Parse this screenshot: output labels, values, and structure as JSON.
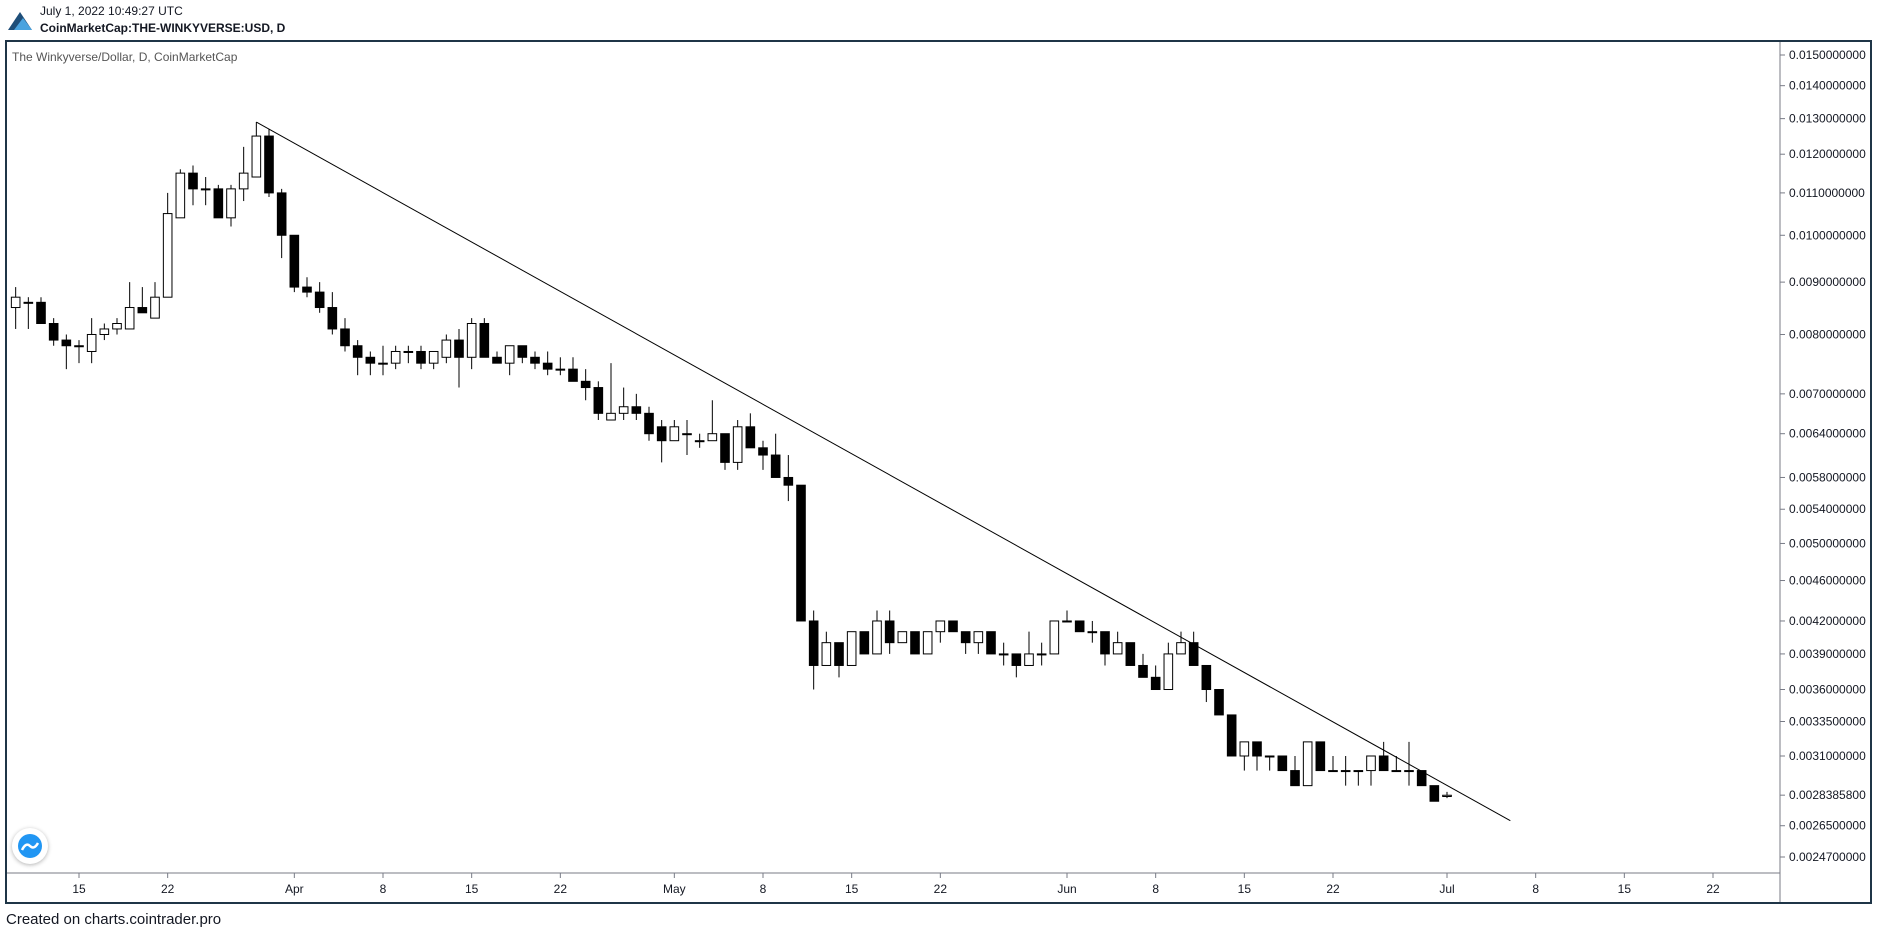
{
  "header": {
    "timestamp": "July 1, 2022 10:49:27 UTC",
    "symbol": "CoinMarketCap:THE-WINKYVERSE:USD, D"
  },
  "legend": {
    "title": "The Winkyverse/Dollar, D, CoinMarketCap"
  },
  "footer": {
    "text": "Created on charts.cointrader.pro"
  },
  "icons": {
    "logo": "cointrader-logo-icon",
    "badge": "tradingview-badge-icon"
  },
  "colors": {
    "up_fill": "#ffffff",
    "down_fill": "#000000",
    "wick": "#000000",
    "border": "#1f3547",
    "text": "#131722"
  },
  "chart_data": {
    "type": "candlestick",
    "title": "The Winkyverse/Dollar, D, CoinMarketCap",
    "scale": "log",
    "ylim": [
      0.00238,
      0.0153
    ],
    "y_ticks": [
      "0.0150000000",
      "0.0140000000",
      "0.0130000000",
      "0.0120000000",
      "0.0110000000",
      "0.0100000000",
      "0.0090000000",
      "0.0080000000",
      "0.0070000000",
      "0.0064000000",
      "0.0058000000",
      "0.0054000000",
      "0.0050000000",
      "0.0046000000",
      "0.0042000000",
      "0.0039000000",
      "0.0036000000",
      "0.0033500000",
      "0.0031000000",
      "0.0028385800",
      "0.0026500000",
      "0.0024700000"
    ],
    "last_price_label": "0.0028385800",
    "x_ticks": [
      "15",
      "22",
      "Apr",
      "8",
      "15",
      "22",
      "May",
      "8",
      "15",
      "22",
      "Jun",
      "8",
      "15",
      "22",
      "Jul",
      "8",
      "15",
      "22"
    ],
    "x_tick_dates": [
      "2022-03-15",
      "2022-03-22",
      "2022-04-01",
      "2022-04-08",
      "2022-04-15",
      "2022-04-22",
      "2022-05-01",
      "2022-05-08",
      "2022-05-15",
      "2022-05-22",
      "2022-06-01",
      "2022-06-08",
      "2022-06-15",
      "2022-06-22",
      "2022-07-01",
      "2022-07-08",
      "2022-07-15",
      "2022-07-22"
    ],
    "grid": false,
    "trendline": {
      "start": [
        "2022-03-29",
        0.0129
      ],
      "end": [
        "2022-07-06",
        0.00268
      ]
    },
    "candles": [
      [
        "2022-03-10",
        0.0085,
        0.0089,
        0.0081,
        0.0087
      ],
      [
        "2022-03-11",
        0.0086,
        0.0087,
        0.0081,
        0.0086
      ],
      [
        "2022-03-12",
        0.0086,
        0.0087,
        0.0082,
        0.0082
      ],
      [
        "2022-03-13",
        0.0082,
        0.0083,
        0.0078,
        0.0079
      ],
      [
        "2022-03-14",
        0.0079,
        0.008,
        0.0074,
        0.0078
      ],
      [
        "2022-03-15",
        0.0078,
        0.0079,
        0.0075,
        0.0078
      ],
      [
        "2022-03-16",
        0.0077,
        0.0083,
        0.0075,
        0.008
      ],
      [
        "2022-03-17",
        0.008,
        0.0082,
        0.0079,
        0.0081
      ],
      [
        "2022-03-18",
        0.0081,
        0.0083,
        0.008,
        0.0082
      ],
      [
        "2022-03-19",
        0.0081,
        0.009,
        0.0081,
        0.0085
      ],
      [
        "2022-03-20",
        0.0085,
        0.0089,
        0.0084,
        0.0084
      ],
      [
        "2022-03-21",
        0.0083,
        0.009,
        0.0083,
        0.0087
      ],
      [
        "2022-03-22",
        0.0087,
        0.011,
        0.0087,
        0.0105
      ],
      [
        "2022-03-23",
        0.0104,
        0.0116,
        0.0104,
        0.0115
      ],
      [
        "2022-03-24",
        0.0115,
        0.0117,
        0.0107,
        0.0111
      ],
      [
        "2022-03-25",
        0.0111,
        0.0114,
        0.0107,
        0.0111
      ],
      [
        "2022-03-26",
        0.0111,
        0.0112,
        0.0104,
        0.0104
      ],
      [
        "2022-03-27",
        0.0104,
        0.0112,
        0.0102,
        0.0111
      ],
      [
        "2022-03-28",
        0.0111,
        0.0122,
        0.0108,
        0.0115
      ],
      [
        "2022-03-29",
        0.0114,
        0.0129,
        0.0114,
        0.0125
      ],
      [
        "2022-03-30",
        0.0125,
        0.0127,
        0.0109,
        0.011
      ],
      [
        "2022-03-31",
        0.011,
        0.0111,
        0.0095,
        0.01
      ],
      [
        "2022-04-01",
        0.01,
        0.01,
        0.0088,
        0.0089
      ],
      [
        "2022-04-02",
        0.0089,
        0.0091,
        0.0087,
        0.0088
      ],
      [
        "2022-04-03",
        0.0088,
        0.009,
        0.0084,
        0.0085
      ],
      [
        "2022-04-04",
        0.0085,
        0.0088,
        0.008,
        0.0081
      ],
      [
        "2022-04-05",
        0.0081,
        0.0083,
        0.0077,
        0.0078
      ],
      [
        "2022-04-06",
        0.0078,
        0.0079,
        0.0073,
        0.0076
      ],
      [
        "2022-04-07",
        0.0076,
        0.0077,
        0.0073,
        0.0075
      ],
      [
        "2022-04-08",
        0.0075,
        0.0078,
        0.0073,
        0.0075
      ],
      [
        "2022-04-09",
        0.0075,
        0.0078,
        0.0074,
        0.0077
      ],
      [
        "2022-04-10",
        0.0077,
        0.0078,
        0.0075,
        0.0077
      ],
      [
        "2022-04-11",
        0.0077,
        0.0078,
        0.0074,
        0.0075
      ],
      [
        "2022-04-12",
        0.0075,
        0.0077,
        0.0074,
        0.0077
      ],
      [
        "2022-04-13",
        0.0076,
        0.008,
        0.0075,
        0.0079
      ],
      [
        "2022-04-14",
        0.0079,
        0.0081,
        0.0071,
        0.0076
      ],
      [
        "2022-04-15",
        0.0076,
        0.0083,
        0.0074,
        0.0082
      ],
      [
        "2022-04-16",
        0.0082,
        0.0083,
        0.0076,
        0.0076
      ],
      [
        "2022-04-17",
        0.0076,
        0.0077,
        0.0075,
        0.0075
      ],
      [
        "2022-04-18",
        0.0075,
        0.0078,
        0.0073,
        0.0078
      ],
      [
        "2022-04-19",
        0.0078,
        0.0078,
        0.0075,
        0.0076
      ],
      [
        "2022-04-20",
        0.0076,
        0.0077,
        0.0074,
        0.0075
      ],
      [
        "2022-04-21",
        0.0075,
        0.0077,
        0.0073,
        0.0074
      ],
      [
        "2022-04-22",
        0.0074,
        0.0076,
        0.0073,
        0.0074
      ],
      [
        "2022-04-23",
        0.0074,
        0.0076,
        0.0072,
        0.0072
      ],
      [
        "2022-04-24",
        0.0072,
        0.0074,
        0.0069,
        0.0071
      ],
      [
        "2022-04-25",
        0.0071,
        0.0072,
        0.0066,
        0.0067
      ],
      [
        "2022-04-26",
        0.0066,
        0.0075,
        0.0066,
        0.0067
      ],
      [
        "2022-04-27",
        0.0067,
        0.0071,
        0.0066,
        0.0068
      ],
      [
        "2022-04-28",
        0.0068,
        0.007,
        0.0066,
        0.0067
      ],
      [
        "2022-04-29",
        0.0067,
        0.0068,
        0.0063,
        0.0064
      ],
      [
        "2022-04-30",
        0.0065,
        0.0066,
        0.006,
        0.0063
      ],
      [
        "2022-05-01",
        0.0063,
        0.0066,
        0.0063,
        0.0065
      ],
      [
        "2022-05-02",
        0.0064,
        0.0066,
        0.0061,
        0.0064
      ],
      [
        "2022-05-03",
        0.0063,
        0.0064,
        0.0062,
        0.0063
      ],
      [
        "2022-05-04",
        0.0063,
        0.0069,
        0.0063,
        0.0064
      ],
      [
        "2022-05-05",
        0.0064,
        0.0064,
        0.0059,
        0.006
      ],
      [
        "2022-05-06",
        0.006,
        0.0066,
        0.0059,
        0.0065
      ],
      [
        "2022-05-07",
        0.0065,
        0.0067,
        0.0062,
        0.0062
      ],
      [
        "2022-05-08",
        0.0062,
        0.0063,
        0.0059,
        0.0061
      ],
      [
        "2022-05-09",
        0.0061,
        0.0064,
        0.0058,
        0.0058
      ],
      [
        "2022-05-10",
        0.0058,
        0.0061,
        0.0055,
        0.0057
      ],
      [
        "2022-05-11",
        0.0057,
        0.0057,
        0.0042,
        0.0042
      ],
      [
        "2022-05-12",
        0.0042,
        0.0043,
        0.0036,
        0.0038
      ],
      [
        "2022-05-13",
        0.0038,
        0.0041,
        0.0038,
        0.004
      ],
      [
        "2022-05-14",
        0.004,
        0.004,
        0.0037,
        0.0038
      ],
      [
        "2022-05-15",
        0.0038,
        0.0041,
        0.0038,
        0.0041
      ],
      [
        "2022-05-16",
        0.0041,
        0.0041,
        0.0039,
        0.0039
      ],
      [
        "2022-05-17",
        0.0039,
        0.0043,
        0.0039,
        0.0042
      ],
      [
        "2022-05-18",
        0.0042,
        0.0043,
        0.0039,
        0.004
      ],
      [
        "2022-05-19",
        0.004,
        0.0041,
        0.004,
        0.0041
      ],
      [
        "2022-05-20",
        0.0041,
        0.0041,
        0.0039,
        0.0039
      ],
      [
        "2022-05-21",
        0.0039,
        0.0041,
        0.0039,
        0.0041
      ],
      [
        "2022-05-22",
        0.0041,
        0.0042,
        0.004,
        0.0042
      ],
      [
        "2022-05-23",
        0.0042,
        0.0042,
        0.0041,
        0.0041
      ],
      [
        "2022-05-24",
        0.0041,
        0.0041,
        0.0039,
        0.004
      ],
      [
        "2022-05-25",
        0.004,
        0.0041,
        0.0039,
        0.0041
      ],
      [
        "2022-05-26",
        0.0041,
        0.0041,
        0.0039,
        0.0039
      ],
      [
        "2022-05-27",
        0.0039,
        0.004,
        0.0038,
        0.0039
      ],
      [
        "2022-05-28",
        0.0039,
        0.0039,
        0.0037,
        0.0038
      ],
      [
        "2022-05-29",
        0.0038,
        0.0041,
        0.0038,
        0.0039
      ],
      [
        "2022-05-30",
        0.0039,
        0.004,
        0.0038,
        0.0039
      ],
      [
        "2022-05-31",
        0.0039,
        0.0042,
        0.0039,
        0.0042
      ],
      [
        "2022-06-01",
        0.0042,
        0.0043,
        0.0042,
        0.0042
      ],
      [
        "2022-06-02",
        0.0042,
        0.0042,
        0.0041,
        0.0041
      ],
      [
        "2022-06-03",
        0.0041,
        0.0042,
        0.004,
        0.0041
      ],
      [
        "2022-06-04",
        0.0041,
        0.0041,
        0.0038,
        0.0039
      ],
      [
        "2022-06-05",
        0.0039,
        0.0041,
        0.0039,
        0.004
      ],
      [
        "2022-06-06",
        0.004,
        0.004,
        0.0038,
        0.0038
      ],
      [
        "2022-06-07",
        0.0038,
        0.0039,
        0.0037,
        0.0037
      ],
      [
        "2022-06-08",
        0.0037,
        0.0038,
        0.0036,
        0.0036
      ],
      [
        "2022-06-09",
        0.0036,
        0.004,
        0.0036,
        0.0039
      ],
      [
        "2022-06-10",
        0.0039,
        0.0041,
        0.0039,
        0.004
      ],
      [
        "2022-06-11",
        0.004,
        0.0041,
        0.0038,
        0.0038
      ],
      [
        "2022-06-12",
        0.0038,
        0.0038,
        0.0035,
        0.0036
      ],
      [
        "2022-06-13",
        0.0036,
        0.0036,
        0.0034,
        0.0034
      ],
      [
        "2022-06-14",
        0.0034,
        0.0034,
        0.0031,
        0.0031
      ],
      [
        "2022-06-15",
        0.0031,
        0.0032,
        0.003,
        0.0032
      ],
      [
        "2022-06-16",
        0.0032,
        0.0032,
        0.003,
        0.0031
      ],
      [
        "2022-06-17",
        0.0031,
        0.0031,
        0.003,
        0.0031
      ],
      [
        "2022-06-18",
        0.0031,
        0.0031,
        0.003,
        0.003
      ],
      [
        "2022-06-19",
        0.003,
        0.0031,
        0.0029,
        0.0029
      ],
      [
        "2022-06-20",
        0.0029,
        0.0032,
        0.0029,
        0.0032
      ],
      [
        "2022-06-21",
        0.0032,
        0.0032,
        0.003,
        0.003
      ],
      [
        "2022-06-22",
        0.003,
        0.0031,
        0.003,
        0.003
      ],
      [
        "2022-06-23",
        0.003,
        0.0031,
        0.0029,
        0.003
      ],
      [
        "2022-06-24",
        0.003,
        0.003,
        0.0029,
        0.003
      ],
      [
        "2022-06-25",
        0.003,
        0.0031,
        0.0029,
        0.0031
      ],
      [
        "2022-06-26",
        0.0031,
        0.0032,
        0.003,
        0.003
      ],
      [
        "2022-06-27",
        0.003,
        0.0031,
        0.003,
        0.003
      ],
      [
        "2022-06-28",
        0.003,
        0.0032,
        0.0029,
        0.003
      ],
      [
        "2022-06-29",
        0.003,
        0.003,
        0.0029,
        0.0029
      ],
      [
        "2022-06-30",
        0.0029,
        0.0029,
        0.0028,
        0.0028
      ],
      [
        "2022-07-01",
        0.00283,
        0.00286,
        0.00282,
        0.002838
      ]
    ]
  }
}
